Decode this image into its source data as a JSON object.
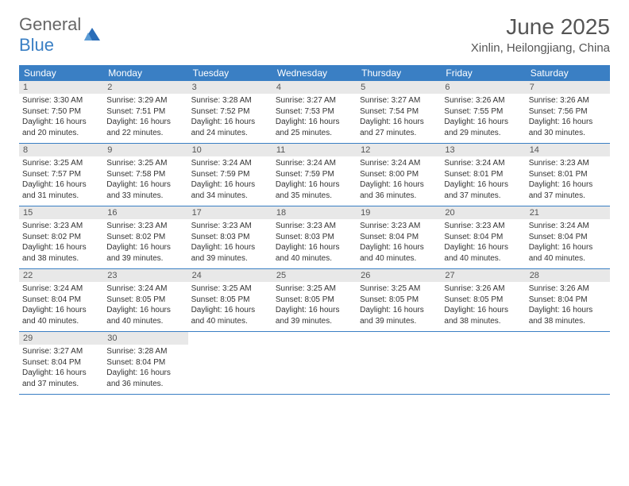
{
  "logo": {
    "part1": "General",
    "part2": "Blue"
  },
  "title": "June 2025",
  "location": "Xinlin, Heilongjiang, China",
  "colors": {
    "header_bg": "#3a7fc4",
    "header_text": "#ffffff",
    "daynum_bg": "#e8e8e8",
    "border": "#3a7fc4",
    "body_text": "#333333",
    "title_text": "#555555"
  },
  "weekdays": [
    "Sunday",
    "Monday",
    "Tuesday",
    "Wednesday",
    "Thursday",
    "Friday",
    "Saturday"
  ],
  "weeks": [
    [
      {
        "n": "1",
        "sr": "3:30 AM",
        "ss": "7:50 PM",
        "dl": "16 hours and 20 minutes."
      },
      {
        "n": "2",
        "sr": "3:29 AM",
        "ss": "7:51 PM",
        "dl": "16 hours and 22 minutes."
      },
      {
        "n": "3",
        "sr": "3:28 AM",
        "ss": "7:52 PM",
        "dl": "16 hours and 24 minutes."
      },
      {
        "n": "4",
        "sr": "3:27 AM",
        "ss": "7:53 PM",
        "dl": "16 hours and 25 minutes."
      },
      {
        "n": "5",
        "sr": "3:27 AM",
        "ss": "7:54 PM",
        "dl": "16 hours and 27 minutes."
      },
      {
        "n": "6",
        "sr": "3:26 AM",
        "ss": "7:55 PM",
        "dl": "16 hours and 29 minutes."
      },
      {
        "n": "7",
        "sr": "3:26 AM",
        "ss": "7:56 PM",
        "dl": "16 hours and 30 minutes."
      }
    ],
    [
      {
        "n": "8",
        "sr": "3:25 AM",
        "ss": "7:57 PM",
        "dl": "16 hours and 31 minutes."
      },
      {
        "n": "9",
        "sr": "3:25 AM",
        "ss": "7:58 PM",
        "dl": "16 hours and 33 minutes."
      },
      {
        "n": "10",
        "sr": "3:24 AM",
        "ss": "7:59 PM",
        "dl": "16 hours and 34 minutes."
      },
      {
        "n": "11",
        "sr": "3:24 AM",
        "ss": "7:59 PM",
        "dl": "16 hours and 35 minutes."
      },
      {
        "n": "12",
        "sr": "3:24 AM",
        "ss": "8:00 PM",
        "dl": "16 hours and 36 minutes."
      },
      {
        "n": "13",
        "sr": "3:24 AM",
        "ss": "8:01 PM",
        "dl": "16 hours and 37 minutes."
      },
      {
        "n": "14",
        "sr": "3:23 AM",
        "ss": "8:01 PM",
        "dl": "16 hours and 37 minutes."
      }
    ],
    [
      {
        "n": "15",
        "sr": "3:23 AM",
        "ss": "8:02 PM",
        "dl": "16 hours and 38 minutes."
      },
      {
        "n": "16",
        "sr": "3:23 AM",
        "ss": "8:02 PM",
        "dl": "16 hours and 39 minutes."
      },
      {
        "n": "17",
        "sr": "3:23 AM",
        "ss": "8:03 PM",
        "dl": "16 hours and 39 minutes."
      },
      {
        "n": "18",
        "sr": "3:23 AM",
        "ss": "8:03 PM",
        "dl": "16 hours and 40 minutes."
      },
      {
        "n": "19",
        "sr": "3:23 AM",
        "ss": "8:04 PM",
        "dl": "16 hours and 40 minutes."
      },
      {
        "n": "20",
        "sr": "3:23 AM",
        "ss": "8:04 PM",
        "dl": "16 hours and 40 minutes."
      },
      {
        "n": "21",
        "sr": "3:24 AM",
        "ss": "8:04 PM",
        "dl": "16 hours and 40 minutes."
      }
    ],
    [
      {
        "n": "22",
        "sr": "3:24 AM",
        "ss": "8:04 PM",
        "dl": "16 hours and 40 minutes."
      },
      {
        "n": "23",
        "sr": "3:24 AM",
        "ss": "8:05 PM",
        "dl": "16 hours and 40 minutes."
      },
      {
        "n": "24",
        "sr": "3:25 AM",
        "ss": "8:05 PM",
        "dl": "16 hours and 40 minutes."
      },
      {
        "n": "25",
        "sr": "3:25 AM",
        "ss": "8:05 PM",
        "dl": "16 hours and 39 minutes."
      },
      {
        "n": "26",
        "sr": "3:25 AM",
        "ss": "8:05 PM",
        "dl": "16 hours and 39 minutes."
      },
      {
        "n": "27",
        "sr": "3:26 AM",
        "ss": "8:05 PM",
        "dl": "16 hours and 38 minutes."
      },
      {
        "n": "28",
        "sr": "3:26 AM",
        "ss": "8:04 PM",
        "dl": "16 hours and 38 minutes."
      }
    ],
    [
      {
        "n": "29",
        "sr": "3:27 AM",
        "ss": "8:04 PM",
        "dl": "16 hours and 37 minutes."
      },
      {
        "n": "30",
        "sr": "3:28 AM",
        "ss": "8:04 PM",
        "dl": "16 hours and 36 minutes."
      },
      null,
      null,
      null,
      null,
      null
    ]
  ],
  "labels": {
    "sunrise": "Sunrise: ",
    "sunset": "Sunset: ",
    "daylight": "Daylight: "
  }
}
